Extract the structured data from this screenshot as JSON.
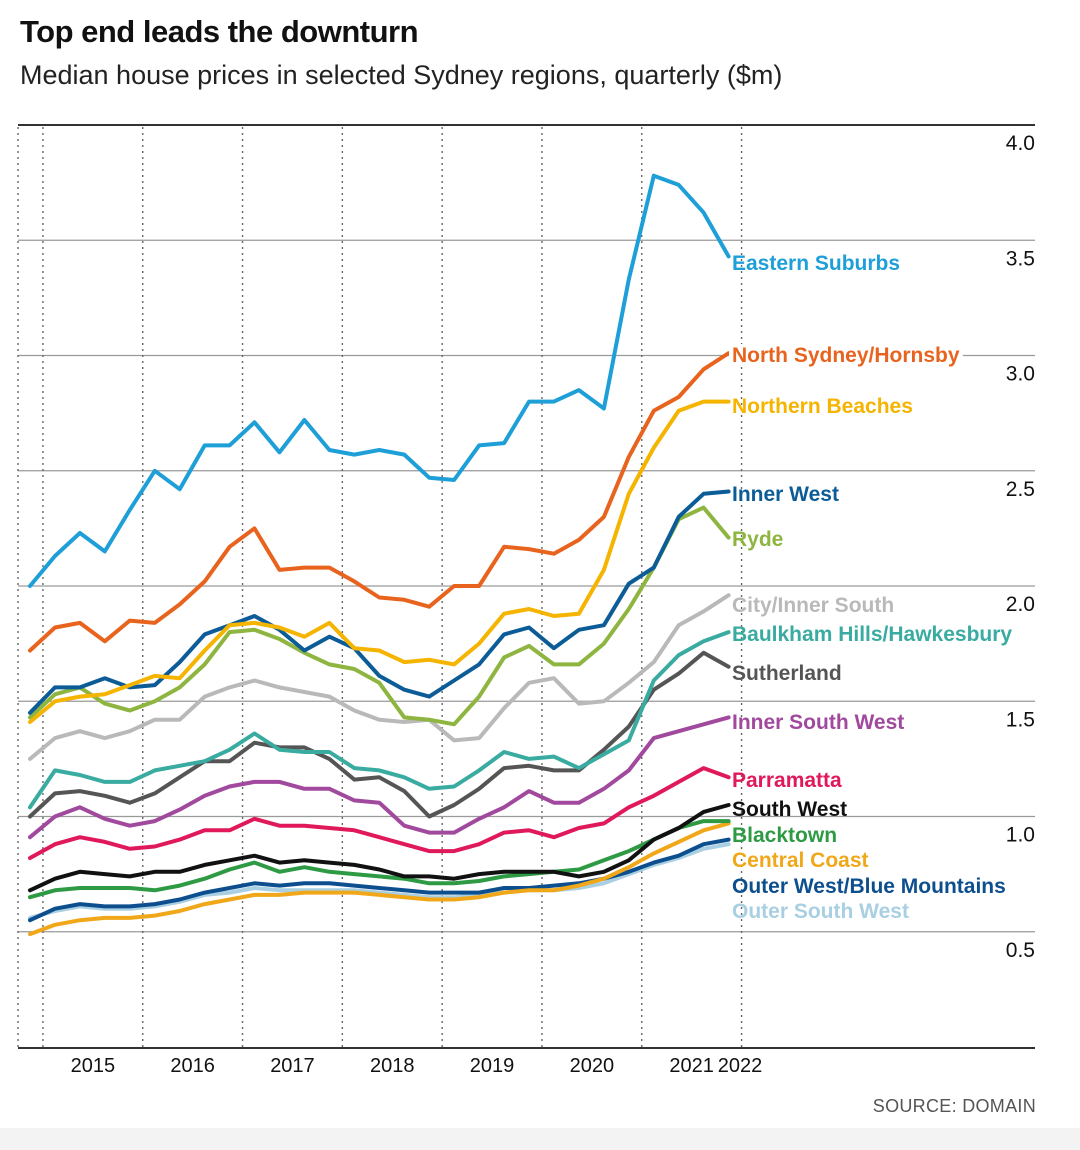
{
  "title": "Top end leads the downturn",
  "subtitle": "Median house prices in selected Sydney regions, quarterly ($m)",
  "source": "SOURCE: DOMAIN",
  "chart_data": {
    "type": "line",
    "title": "Top end leads the downturn",
    "subtitle": "Median house prices in selected Sydney regions, quarterly ($m)",
    "xlabel": "",
    "ylabel": "",
    "ylim": [
      0.1,
      4.0
    ],
    "yticks": [
      "4.0",
      "3.5",
      "3.0",
      "2.5",
      "2.0",
      "1.5",
      "1.0",
      "0.5"
    ],
    "ytick_values": [
      4.0,
      3.5,
      3.0,
      2.5,
      2.0,
      1.5,
      1.0,
      0.5
    ],
    "xticks": [
      "2015",
      "2016",
      "2017",
      "2018",
      "2019",
      "2020",
      "2021",
      "2022"
    ],
    "x_start": 2014.75,
    "x_step": 0.25,
    "grid": "horizontal solid, vertical dotted at year boundaries",
    "legend": "labels at right end of each line",
    "series": [
      {
        "name": "Eastern Suburbs",
        "color": "#1e9fd8",
        "values": [
          2.0,
          2.13,
          2.23,
          2.15,
          2.33,
          2.5,
          2.42,
          2.61,
          2.61,
          2.71,
          2.58,
          2.72,
          2.59,
          2.57,
          2.59,
          2.57,
          2.47,
          2.46,
          2.61,
          2.62,
          2.8,
          2.8,
          2.85,
          2.77,
          3.33,
          3.78,
          3.74,
          3.62,
          3.43
        ]
      },
      {
        "name": "North Sydney/Hornsby",
        "color": "#e8641e",
        "values": [
          1.72,
          1.82,
          1.84,
          1.76,
          1.85,
          1.84,
          1.92,
          2.02,
          2.17,
          2.25,
          2.07,
          2.08,
          2.08,
          2.02,
          1.95,
          1.94,
          1.91,
          2.0,
          2.0,
          2.17,
          2.16,
          2.14,
          2.2,
          2.3,
          2.56,
          2.76,
          2.82,
          2.94,
          3.01
        ]
      },
      {
        "name": "Northern Beaches",
        "color": "#f5b400",
        "values": [
          1.41,
          1.5,
          1.52,
          1.53,
          1.57,
          1.61,
          1.6,
          1.72,
          1.83,
          1.84,
          1.82,
          1.78,
          1.84,
          1.73,
          1.72,
          1.67,
          1.68,
          1.66,
          1.75,
          1.88,
          1.9,
          1.87,
          1.88,
          2.07,
          2.4,
          2.6,
          2.76,
          2.8,
          2.8
        ]
      },
      {
        "name": "Inner West",
        "color": "#0b5c97",
        "values": [
          1.45,
          1.56,
          1.56,
          1.6,
          1.56,
          1.57,
          1.67,
          1.79,
          1.83,
          1.87,
          1.81,
          1.72,
          1.78,
          1.73,
          1.61,
          1.55,
          1.52,
          1.59,
          1.66,
          1.79,
          1.82,
          1.73,
          1.81,
          1.83,
          2.01,
          2.08,
          2.3,
          2.4,
          2.41
        ]
      },
      {
        "name": "Ryde",
        "color": "#8db53f",
        "values": [
          1.43,
          1.53,
          1.56,
          1.49,
          1.46,
          1.5,
          1.56,
          1.66,
          1.8,
          1.81,
          1.77,
          1.71,
          1.66,
          1.64,
          1.58,
          1.43,
          1.42,
          1.4,
          1.52,
          1.69,
          1.74,
          1.66,
          1.66,
          1.75,
          1.9,
          2.08,
          2.29,
          2.34,
          2.21
        ]
      },
      {
        "name": "City/Inner South",
        "color": "#b9b9b9",
        "values": [
          1.25,
          1.34,
          1.37,
          1.34,
          1.37,
          1.42,
          1.42,
          1.52,
          1.56,
          1.59,
          1.56,
          1.54,
          1.52,
          1.46,
          1.42,
          1.41,
          1.42,
          1.33,
          1.34,
          1.47,
          1.58,
          1.6,
          1.49,
          1.5,
          1.58,
          1.67,
          1.83,
          1.89,
          1.96
        ]
      },
      {
        "name": "Baulkham Hills/Hawkesbury",
        "color": "#3aaba0",
        "values": [
          1.04,
          1.2,
          1.18,
          1.15,
          1.15,
          1.2,
          1.22,
          1.24,
          1.29,
          1.36,
          1.29,
          1.28,
          1.28,
          1.21,
          1.2,
          1.17,
          1.12,
          1.13,
          1.2,
          1.28,
          1.25,
          1.26,
          1.21,
          1.27,
          1.33,
          1.59,
          1.7,
          1.76,
          1.8
        ]
      },
      {
        "name": "Sutherland",
        "color": "#555555",
        "values": [
          1.0,
          1.1,
          1.11,
          1.09,
          1.06,
          1.1,
          1.17,
          1.24,
          1.24,
          1.32,
          1.3,
          1.3,
          1.25,
          1.16,
          1.17,
          1.11,
          1.0,
          1.05,
          1.12,
          1.21,
          1.22,
          1.2,
          1.2,
          1.29,
          1.39,
          1.55,
          1.62,
          1.71,
          1.65
        ]
      },
      {
        "name": "Inner South West",
        "color": "#a0499d",
        "values": [
          0.91,
          1.0,
          1.04,
          0.99,
          0.96,
          0.98,
          1.03,
          1.09,
          1.13,
          1.15,
          1.15,
          1.12,
          1.12,
          1.07,
          1.06,
          0.96,
          0.93,
          0.93,
          0.99,
          1.04,
          1.11,
          1.06,
          1.06,
          1.12,
          1.2,
          1.34,
          1.37,
          1.4,
          1.43
        ]
      },
      {
        "name": "Parramatta",
        "color": "#e0195a",
        "values": [
          0.82,
          0.88,
          0.91,
          0.89,
          0.86,
          0.87,
          0.9,
          0.94,
          0.94,
          0.99,
          0.96,
          0.96,
          0.95,
          0.94,
          0.91,
          0.88,
          0.85,
          0.85,
          0.88,
          0.93,
          0.94,
          0.91,
          0.95,
          0.97,
          1.04,
          1.09,
          1.15,
          1.21,
          1.17
        ]
      },
      {
        "name": "South West",
        "color": "#111111",
        "values": [
          0.68,
          0.73,
          0.76,
          0.75,
          0.74,
          0.76,
          0.76,
          0.79,
          0.81,
          0.83,
          0.8,
          0.81,
          0.8,
          0.79,
          0.77,
          0.74,
          0.74,
          0.73,
          0.75,
          0.76,
          0.76,
          0.76,
          0.74,
          0.76,
          0.81,
          0.9,
          0.95,
          1.02,
          1.05
        ]
      },
      {
        "name": "Blacktown",
        "color": "#2e9a44",
        "values": [
          0.65,
          0.68,
          0.69,
          0.69,
          0.69,
          0.68,
          0.7,
          0.73,
          0.77,
          0.8,
          0.76,
          0.78,
          0.76,
          0.75,
          0.74,
          0.73,
          0.71,
          0.71,
          0.72,
          0.74,
          0.75,
          0.76,
          0.77,
          0.81,
          0.85,
          0.9,
          0.95,
          0.98,
          0.98
        ]
      },
      {
        "name": "Central Coast",
        "color": "#f0a81a",
        "values": [
          0.49,
          0.53,
          0.55,
          0.56,
          0.56,
          0.57,
          0.59,
          0.62,
          0.64,
          0.66,
          0.66,
          0.67,
          0.67,
          0.67,
          0.66,
          0.65,
          0.64,
          0.64,
          0.65,
          0.67,
          0.68,
          0.68,
          0.7,
          0.73,
          0.78,
          0.84,
          0.89,
          0.94,
          0.97
        ]
      },
      {
        "name": "Outer West/Blue Mountains",
        "color": "#0d4f8e",
        "values": [
          0.55,
          0.6,
          0.62,
          0.61,
          0.61,
          0.62,
          0.64,
          0.67,
          0.69,
          0.71,
          0.7,
          0.71,
          0.71,
          0.7,
          0.69,
          0.68,
          0.67,
          0.67,
          0.67,
          0.69,
          0.69,
          0.7,
          0.71,
          0.73,
          0.76,
          0.8,
          0.83,
          0.88,
          0.9
        ]
      },
      {
        "name": "Outer South West",
        "color": "#a9cfe2",
        "values": [
          0.56,
          0.59,
          0.61,
          0.6,
          0.6,
          0.61,
          0.63,
          0.66,
          0.67,
          0.69,
          0.68,
          0.68,
          0.68,
          0.68,
          0.67,
          0.66,
          0.65,
          0.65,
          0.66,
          0.67,
          0.68,
          0.68,
          0.69,
          0.71,
          0.75,
          0.79,
          0.82,
          0.86,
          0.88
        ]
      }
    ]
  }
}
